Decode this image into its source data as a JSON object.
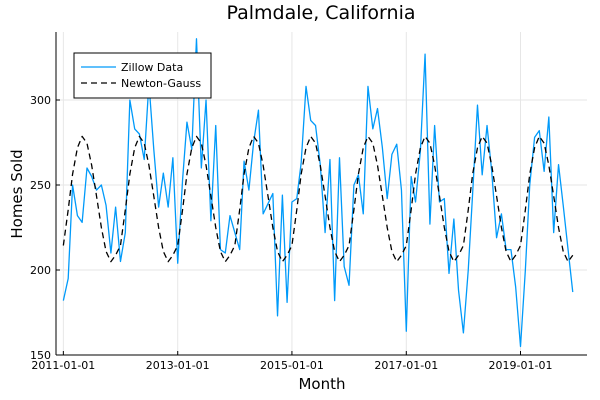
{
  "chart_data": {
    "type": "line",
    "title": "Palmdale, California",
    "xlabel": "Month",
    "ylabel": "Homes Sold",
    "xlim": [
      "2010-11-15",
      "2020-03-01"
    ],
    "ylim": [
      150,
      340
    ],
    "y_ticks": [
      150,
      200,
      250,
      300
    ],
    "x_ticks": [
      "2011-01-01",
      "2013-01-01",
      "2015-01-01",
      "2017-01-01",
      "2019-01-01"
    ],
    "x_tick_labels": [
      "2011-01-01",
      "2013-01-01",
      "2015-01-01",
      "2017-01-01",
      "2019-01-01"
    ],
    "grid": true,
    "legend_position": "top-left",
    "x": [
      "2011-01-01",
      "2011-02-01",
      "2011-03-01",
      "2011-04-01",
      "2011-05-01",
      "2011-06-01",
      "2011-07-01",
      "2011-08-01",
      "2011-09-01",
      "2011-10-01",
      "2011-11-01",
      "2011-12-01",
      "2012-01-01",
      "2012-02-01",
      "2012-03-01",
      "2012-04-01",
      "2012-05-01",
      "2012-06-01",
      "2012-07-01",
      "2012-08-01",
      "2012-09-01",
      "2012-10-01",
      "2012-11-01",
      "2012-12-01",
      "2013-01-01",
      "2013-02-01",
      "2013-03-01",
      "2013-04-01",
      "2013-05-01",
      "2013-06-01",
      "2013-07-01",
      "2013-08-01",
      "2013-09-01",
      "2013-10-01",
      "2013-11-01",
      "2013-12-01",
      "2014-01-01",
      "2014-02-01",
      "2014-03-01",
      "2014-04-01",
      "2014-05-01",
      "2014-06-01",
      "2014-07-01",
      "2014-08-01",
      "2014-09-01",
      "2014-10-01",
      "2014-11-01",
      "2014-12-01",
      "2015-01-01",
      "2015-02-01",
      "2015-03-01",
      "2015-04-01",
      "2015-05-01",
      "2015-06-01",
      "2015-07-01",
      "2015-08-01",
      "2015-09-01",
      "2015-10-01",
      "2015-11-01",
      "2015-12-01",
      "2016-01-01",
      "2016-02-01",
      "2016-03-01",
      "2016-04-01",
      "2016-05-01",
      "2016-06-01",
      "2016-07-01",
      "2016-08-01",
      "2016-09-01",
      "2016-10-01",
      "2016-11-01",
      "2016-12-01",
      "2017-01-01",
      "2017-02-01",
      "2017-03-01",
      "2017-04-01",
      "2017-05-01",
      "2017-06-01",
      "2017-07-01",
      "2017-08-01",
      "2017-09-01",
      "2017-10-01",
      "2017-11-01",
      "2017-12-01",
      "2018-01-01",
      "2018-02-01",
      "2018-03-01",
      "2018-04-01",
      "2018-05-01",
      "2018-06-01",
      "2018-07-01",
      "2018-08-01",
      "2018-09-01",
      "2018-10-01",
      "2018-11-01",
      "2018-12-01",
      "2019-01-01",
      "2019-02-01",
      "2019-03-01",
      "2019-04-01",
      "2019-05-01",
      "2019-06-01",
      "2019-07-01",
      "2019-08-01",
      "2019-09-01",
      "2019-10-01",
      "2019-11-01",
      "2019-12-01"
    ],
    "series": [
      {
        "name": "Zillow Data",
        "color": "#009AFA",
        "style": "solid",
        "values": [
          182,
          195,
          250,
          232,
          228,
          260,
          255,
          247,
          250,
          238,
          210,
          237,
          205,
          222,
          300,
          283,
          280,
          265,
          310,
          271,
          237,
          257,
          237,
          266,
          204,
          253,
          287,
          271,
          336,
          260,
          300,
          229,
          285,
          212,
          210,
          232,
          222,
          212,
          264,
          247,
          275,
          294,
          233,
          239,
          245,
          173,
          244,
          181,
          240,
          242,
          263,
          308,
          288,
          285,
          262,
          222,
          265,
          182,
          266,
          202,
          191,
          250,
          256,
          233,
          308,
          283,
          295,
          272,
          242,
          268,
          274,
          247,
          164,
          255,
          240,
          270,
          327,
          227,
          285,
          240,
          242,
          198,
          230,
          188,
          163,
          200,
          245,
          297,
          256,
          285,
          258,
          219,
          233,
          212,
          212,
          190,
          155,
          200,
          250,
          278,
          282,
          258,
          290,
          222,
          262,
          238,
          212,
          187
        ]
      },
      {
        "name": "Newton-Gauss",
        "color": "#000000",
        "style": "dashed",
        "values": [
          214.4,
          235.4,
          256.4,
          271.9,
          278.6,
          274.6,
          261.6,
          243.5,
          225.0,
          210.9,
          204.9,
          208.7,
          214.4,
          235.4,
          256.4,
          271.9,
          278.6,
          274.6,
          261.6,
          243.5,
          225.0,
          210.9,
          204.9,
          208.7,
          214.4,
          235.4,
          256.4,
          271.9,
          278.6,
          274.6,
          261.6,
          243.5,
          225.0,
          210.9,
          204.9,
          208.7,
          214.4,
          235.4,
          256.4,
          271.9,
          278.6,
          274.6,
          261.6,
          243.5,
          225.0,
          210.9,
          204.9,
          208.7,
          214.4,
          235.4,
          256.4,
          271.9,
          278.6,
          274.6,
          261.6,
          243.5,
          225.0,
          210.9,
          204.9,
          208.7,
          214.4,
          235.4,
          256.4,
          271.9,
          278.6,
          274.6,
          261.6,
          243.5,
          225.0,
          210.9,
          204.9,
          208.7,
          214.4,
          235.4,
          256.4,
          271.9,
          278.6,
          274.6,
          261.6,
          243.5,
          225.0,
          210.9,
          204.9,
          208.7,
          214.4,
          235.4,
          256.4,
          271.9,
          278.6,
          274.6,
          261.6,
          243.5,
          225.0,
          210.9,
          204.9,
          208.7,
          214.4,
          235.4,
          256.4,
          271.9,
          278.6,
          274.6,
          261.6,
          243.5,
          225.0,
          210.9,
          204.9,
          208.7
        ]
      }
    ]
  }
}
